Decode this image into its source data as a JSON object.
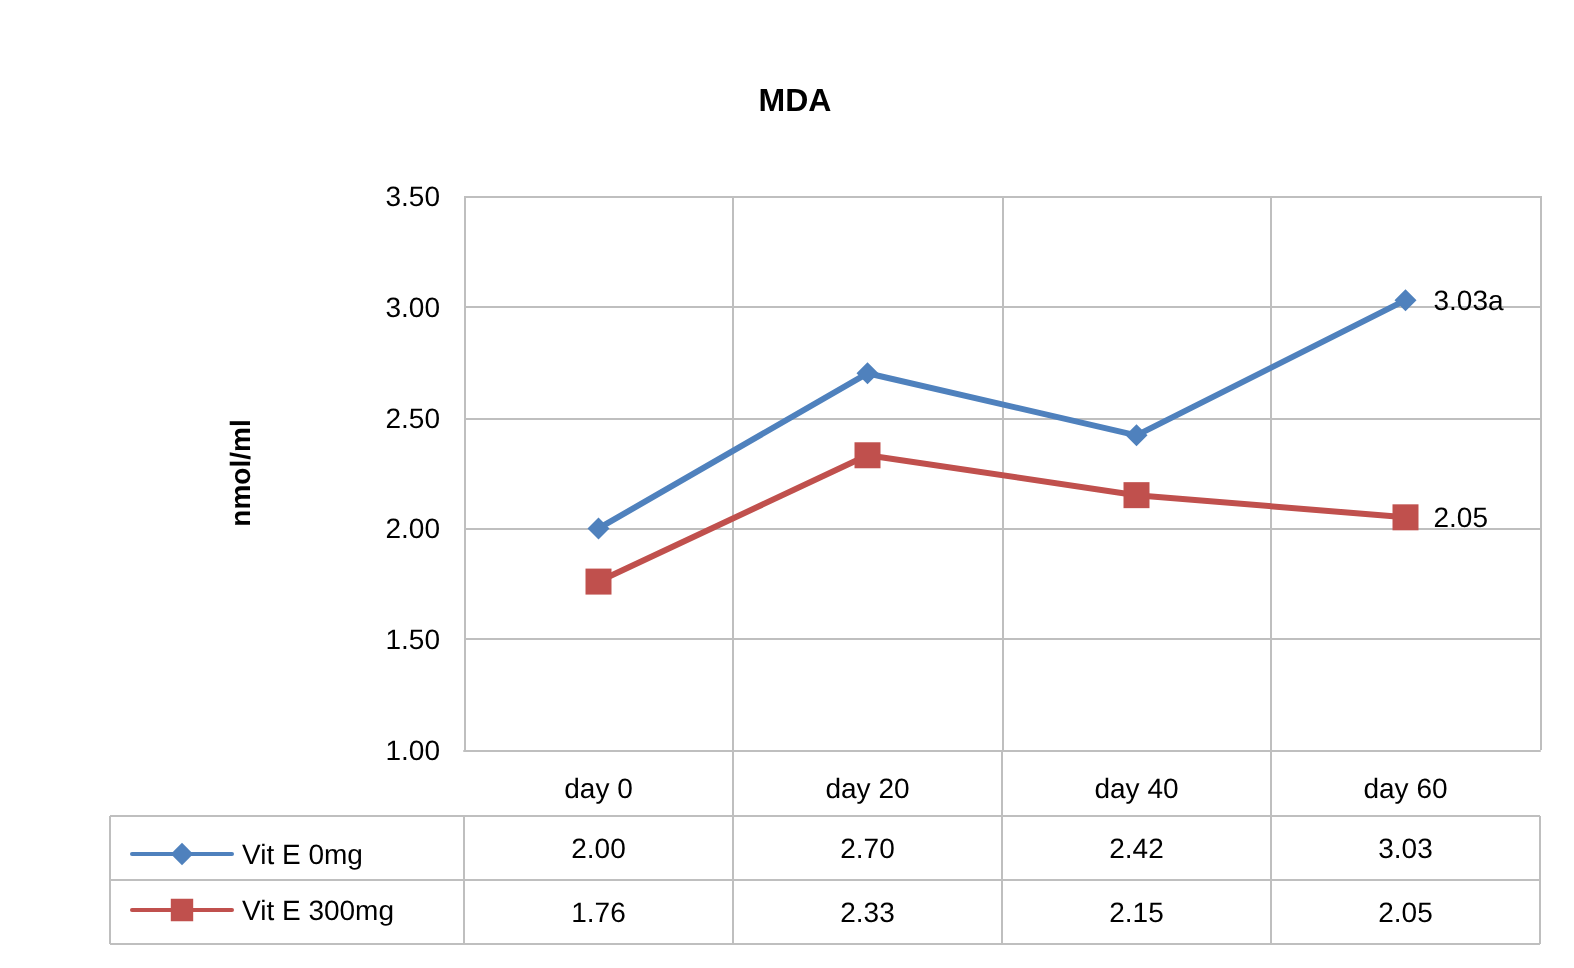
{
  "chart_data": {
    "type": "line",
    "title": "MDA",
    "ylabel": "nmol/ml",
    "categories": [
      "day 0",
      "day 20",
      "day 40",
      "day 60"
    ],
    "series": [
      {
        "name": "Vit E 0mg",
        "color": "#4f81bd",
        "marker": "diamond",
        "values": [
          2.0,
          2.7,
          2.42,
          3.03
        ],
        "value_labels": [
          "2.00",
          "2.70",
          "2.42",
          "3.03"
        ]
      },
      {
        "name": "Vit E 300mg",
        "color": "#c0504d",
        "marker": "square",
        "values": [
          1.76,
          2.33,
          2.15,
          2.05
        ],
        "value_labels": [
          "1.76",
          "2.33",
          "2.15",
          "2.05"
        ]
      }
    ],
    "ylim": [
      1,
      3.5
    ],
    "yticks": [
      {
        "value": 1,
        "label": "1.00"
      },
      {
        "value": 1.5,
        "label": "1.50"
      },
      {
        "value": 2,
        "label": "2.00"
      },
      {
        "value": 2.5,
        "label": "2.50"
      },
      {
        "value": 3,
        "label": "3.00"
      },
      {
        "value": 3.5,
        "label": "3.50"
      }
    ],
    "grid": true,
    "legend": "bottom left",
    "line_style": "solid",
    "annotations": [
      {
        "text": "3.03a",
        "x": "day 60",
        "y": 3.03
      },
      {
        "text": "2.05",
        "x": "day 60",
        "y": 2.05
      }
    ]
  }
}
